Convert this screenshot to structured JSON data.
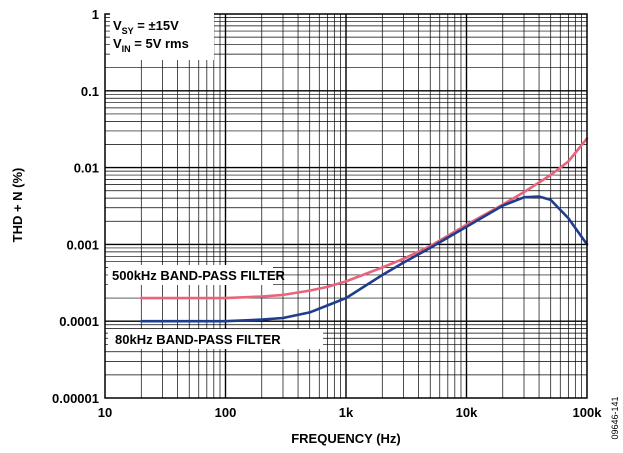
{
  "chart_data": {
    "type": "line",
    "xlabel": "FREQUENCY (Hz)",
    "ylabel": "THD + N (%)",
    "xscale": "log",
    "yscale": "log",
    "xlim": [
      10,
      100000
    ],
    "ylim": [
      1e-05,
      1
    ],
    "grid": true,
    "x_tick_labels": [
      "10",
      "100",
      "1k",
      "10k",
      "100k"
    ],
    "y_tick_labels": [
      "0.00001",
      "0.0001",
      "0.001",
      "0.01",
      "0.1",
      "1"
    ],
    "conditions": {
      "vsy": "V",
      "vsy_sub": "SY",
      "vsy_val": " = ±15V",
      "vin": "V",
      "vin_sub": "IN",
      "vin_val": " = 5V rms"
    },
    "series": [
      {
        "name": "500kHz BAND-PASS FILTER",
        "color": "#e8647c",
        "x": [
          20,
          50,
          100,
          200,
          300,
          500,
          700,
          1000,
          2000,
          3000,
          5000,
          10000,
          20000,
          30000,
          50000,
          70000,
          100000
        ],
        "y": [
          0.0002,
          0.0002,
          0.0002,
          0.00021,
          0.00022,
          0.00025,
          0.00028,
          0.00033,
          0.0005,
          0.00065,
          0.00095,
          0.0018,
          0.0033,
          0.0048,
          0.008,
          0.012,
          0.024
        ]
      },
      {
        "name": "80kHz BAND-PASS FILTER",
        "color": "#1f3d8c",
        "x": [
          20,
          50,
          100,
          200,
          300,
          500,
          700,
          1000,
          2000,
          3000,
          5000,
          10000,
          20000,
          30000,
          40000,
          50000,
          70000,
          100000
        ],
        "y": [
          0.0001,
          0.0001,
          0.0001,
          0.000105,
          0.00011,
          0.00013,
          0.00016,
          0.0002,
          0.0004,
          0.00058,
          0.0009,
          0.0017,
          0.0032,
          0.0041,
          0.0042,
          0.0038,
          0.0022,
          0.001
        ]
      }
    ],
    "figure_id": "09646-141"
  }
}
